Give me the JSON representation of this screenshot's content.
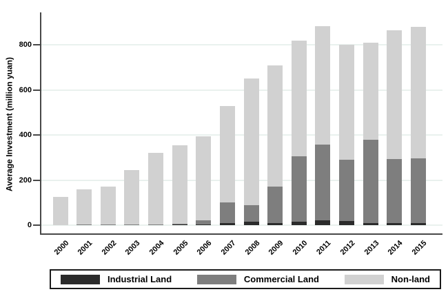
{
  "chart_data": {
    "type": "bar",
    "stacked": true,
    "title": "",
    "xlabel": "",
    "ylabel": "Average Investment (million yuan)",
    "ylim": [
      0,
      940
    ],
    "yticks": [
      0,
      200,
      400,
      600,
      800
    ],
    "grid": true,
    "legend_position": "bottom",
    "categories": [
      "2000",
      "2001",
      "2002",
      "2003",
      "2004",
      "2005",
      "2006",
      "2007",
      "2008",
      "2009",
      "2010",
      "2011",
      "2012",
      "2013",
      "2014",
      "2015"
    ],
    "series": [
      {
        "name": "Industrial Land",
        "color": "#2b2b2b",
        "values": [
          0,
          0,
          0,
          0,
          0,
          2,
          2,
          8,
          15,
          8,
          15,
          22,
          18,
          8,
          8,
          10
        ]
      },
      {
        "name": "Commercial Land",
        "color": "#7e7e7e",
        "values": [
          0,
          3,
          4,
          2,
          4,
          5,
          18,
          92,
          75,
          162,
          290,
          335,
          272,
          370,
          285,
          287
        ]
      },
      {
        "name": "Non-land",
        "color": "#d1d1d1",
        "values": [
          125,
          157,
          168,
          243,
          316,
          348,
          375,
          428,
          560,
          540,
          515,
          528,
          510,
          432,
          572,
          583
        ]
      }
    ],
    "totals": [
      125,
      160,
      172,
      245,
      320,
      355,
      395,
      528,
      650,
      710,
      820,
      885,
      800,
      810,
      865,
      880
    ]
  },
  "colors": {
    "axis": "#474747",
    "gridline": "#e9f1ee",
    "text": "#000000",
    "background": "#ffffff",
    "industrial": "#2b2b2b",
    "commercial": "#7e7e7e",
    "nonland": "#d1d1d1"
  }
}
